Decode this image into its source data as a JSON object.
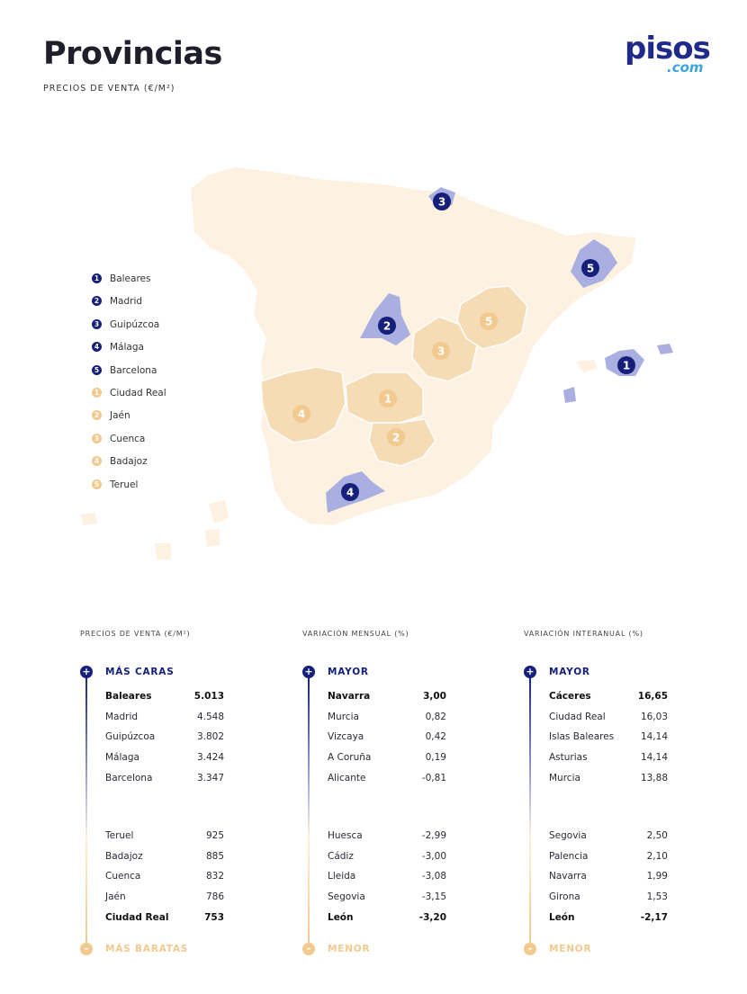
{
  "header": {
    "title": "Provincias",
    "subtitle": "PRECIOS DE VENTA (€/M²)"
  },
  "logo": {
    "main": "pisos",
    "suffix": ".com"
  },
  "colors": {
    "navy": "#16207a",
    "gold": "#f2c98e",
    "map_base": "#fdf1e1",
    "map_blue": "#a9afe0",
    "map_gold": "#f5dcb5"
  },
  "map": {
    "markers": [
      {
        "num": "1",
        "kind": "navy",
        "province": "Baleares"
      },
      {
        "num": "2",
        "kind": "navy",
        "province": "Madrid"
      },
      {
        "num": "3",
        "kind": "navy",
        "province": "Guipúzcoa"
      },
      {
        "num": "4",
        "kind": "navy",
        "province": "Málaga"
      },
      {
        "num": "5",
        "kind": "navy",
        "province": "Barcelona"
      },
      {
        "num": "1",
        "kind": "gold",
        "province": "Ciudad Real"
      },
      {
        "num": "2",
        "kind": "gold",
        "province": "Jaén"
      },
      {
        "num": "3",
        "kind": "gold",
        "province": "Cuenca"
      },
      {
        "num": "4",
        "kind": "gold",
        "province": "Badajoz"
      },
      {
        "num": "5",
        "kind": "gold",
        "province": "Teruel"
      }
    ]
  },
  "legend": [
    {
      "num": "1",
      "label": "Baleares",
      "kind": "navy"
    },
    {
      "num": "2",
      "label": "Madrid",
      "kind": "navy"
    },
    {
      "num": "3",
      "label": "Guipúzcoa",
      "kind": "navy"
    },
    {
      "num": "4",
      "label": "Málaga",
      "kind": "navy"
    },
    {
      "num": "5",
      "label": "Barcelona",
      "kind": "navy"
    },
    {
      "num": "1",
      "label": "Ciudad Real",
      "kind": "gold"
    },
    {
      "num": "2",
      "label": "Jaén",
      "kind": "gold"
    },
    {
      "num": "3",
      "label": "Cuenca",
      "kind": "gold"
    },
    {
      "num": "4",
      "label": "Badajoz",
      "kind": "gold"
    },
    {
      "num": "5",
      "label": "Teruel",
      "kind": "gold"
    }
  ],
  "columns": [
    {
      "heading": "PRECIOS DE VENTA (€/M²)",
      "top_label": "MÁS CARAS",
      "top_sign": "+",
      "bottom_label": "MÁS BARATAS",
      "bottom_sign": "-",
      "top_rows": [
        {
          "name": "Baleares",
          "value": "5.013",
          "bold": true
        },
        {
          "name": "Madrid",
          "value": "4.548"
        },
        {
          "name": "Guipúzcoa",
          "value": "3.802"
        },
        {
          "name": "Málaga",
          "value": "3.424"
        },
        {
          "name": "Barcelona",
          "value": "3.347"
        }
      ],
      "bottom_rows": [
        {
          "name": "Teruel",
          "value": "925"
        },
        {
          "name": "Badajoz",
          "value": "885"
        },
        {
          "name": "Cuenca",
          "value": "832"
        },
        {
          "name": "Jaén",
          "value": "786"
        },
        {
          "name": "Ciudad Real",
          "value": "753",
          "bold": true
        }
      ]
    },
    {
      "heading": "VARIACIÓN MENSUAL (%)",
      "top_label": "MAYOR",
      "top_sign": "+",
      "bottom_label": "MENOR",
      "bottom_sign": "-",
      "top_rows": [
        {
          "name": "Navarra",
          "value": "3,00",
          "bold": true
        },
        {
          "name": "Murcia",
          "value": "0,82"
        },
        {
          "name": "Vizcaya",
          "value": "0,42"
        },
        {
          "name": "A Coruña",
          "value": "0,19"
        },
        {
          "name": "Alicante",
          "value": "-0,81"
        }
      ],
      "bottom_rows": [
        {
          "name": "Huesca",
          "value": "-2,99"
        },
        {
          "name": "Cádiz",
          "value": "-3,00"
        },
        {
          "name": "Lleida",
          "value": "-3,08"
        },
        {
          "name": "Segovia",
          "value": "-3,15"
        },
        {
          "name": "León",
          "value": "-3,20",
          "bold": true
        }
      ]
    },
    {
      "heading": "VARIACIÓN INTERANUAL (%)",
      "top_label": "MAYOR",
      "top_sign": "+",
      "bottom_label": "MENOR",
      "bottom_sign": "-",
      "top_rows": [
        {
          "name": "Cáceres",
          "value": "16,65",
          "bold": true
        },
        {
          "name": "Ciudad Real",
          "value": "16,03"
        },
        {
          "name": "Islas Baleares",
          "value": "14,14"
        },
        {
          "name": "Asturias",
          "value": "14,14"
        },
        {
          "name": "Murcia",
          "value": "13,88"
        }
      ],
      "bottom_rows": [
        {
          "name": "Segovia",
          "value": "2,50"
        },
        {
          "name": "Palencia",
          "value": "2,10"
        },
        {
          "name": "Navarra",
          "value": "1,99"
        },
        {
          "name": "Girona",
          "value": "1,53"
        },
        {
          "name": "León",
          "value": "-2,17",
          "bold": true
        }
      ]
    }
  ]
}
